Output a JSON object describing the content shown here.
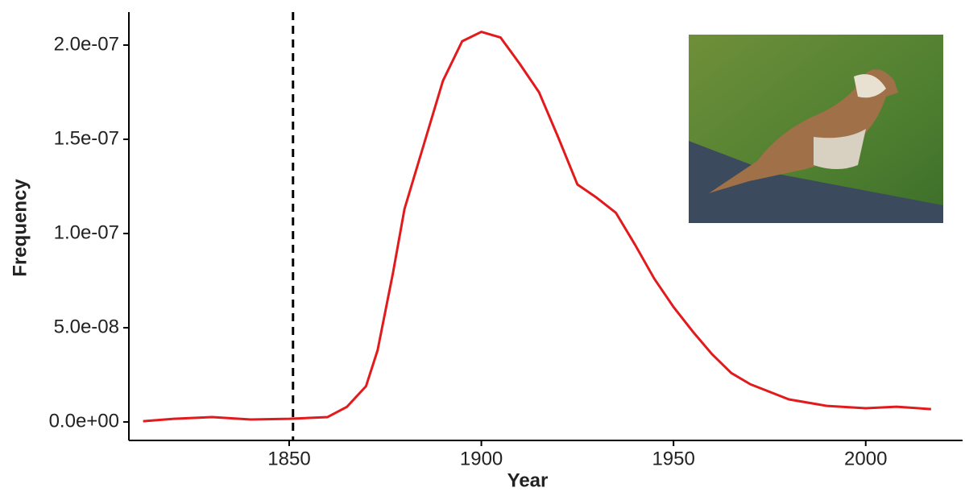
{
  "chart_data": {
    "type": "line",
    "x_label": "Year",
    "y_label": "Frequency",
    "series": [
      {
        "name": "Frequency",
        "color": "#e31a1c",
        "x": [
          1812,
          1820,
          1830,
          1840,
          1850,
          1860,
          1865,
          1870,
          1873,
          1877,
          1880,
          1885,
          1890,
          1895,
          1900,
          1905,
          1910,
          1915,
          1920,
          1925,
          1930,
          1935,
          1940,
          1945,
          1950,
          1955,
          1960,
          1965,
          1970,
          1975,
          1980,
          1990,
          2000,
          2008,
          2017
        ],
        "values": [
          4e-10,
          1.7e-09,
          2.6e-09,
          1.3e-09,
          1.7e-09,
          2.6e-09,
          8e-09,
          1.9e-08,
          3.8e-08,
          7.9e-08,
          1.13e-07,
          1.47e-07,
          1.81e-07,
          2.02e-07,
          2.07e-07,
          2.04e-07,
          1.9e-07,
          1.75e-07,
          1.51e-07,
          1.26e-07,
          1.19e-07,
          1.11e-07,
          9.4e-08,
          7.6e-08,
          6.1e-08,
          4.8e-08,
          3.6e-08,
          2.6e-08,
          2e-08,
          1.6e-08,
          1.2e-08,
          8.5e-09,
          7.3e-09,
          8.1e-09,
          6.8e-09
        ]
      }
    ],
    "vline": 1851,
    "xlim": [
      1808.3,
      2025.2
    ],
    "xticks": [
      1850,
      1900,
      1950,
      2000
    ],
    "ylim": [
      -9.8e-09,
      2.175e-07
    ],
    "yticks": [
      {
        "value": 0,
        "label": "0.0e+00"
      },
      {
        "value": 5e-08,
        "label": "5.0e-08"
      },
      {
        "value": 1e-07,
        "label": "1.0e-07"
      },
      {
        "value": 1.5e-07,
        "label": "1.5e-07"
      },
      {
        "value": 2e-07,
        "label": "2.0e-07"
      }
    ]
  }
}
